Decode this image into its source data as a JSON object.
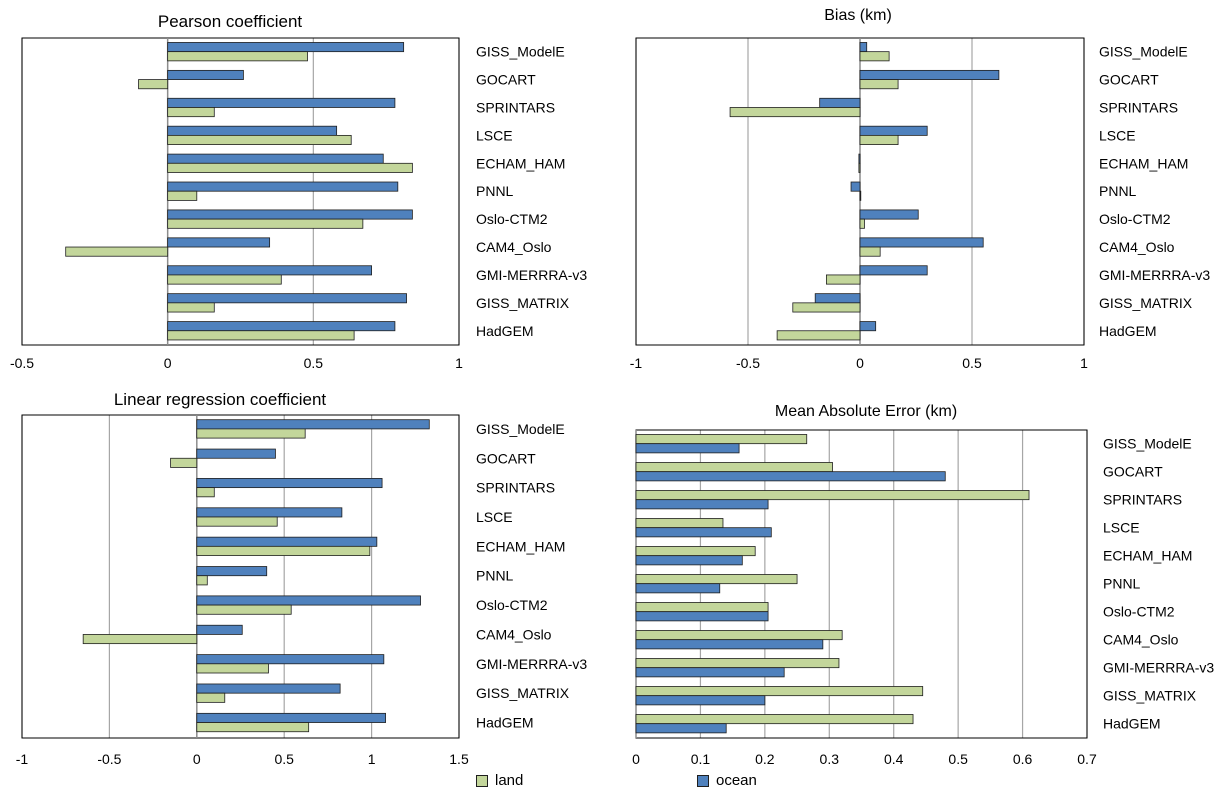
{
  "chart_data": [
    {
      "type": "bar",
      "orientation": "horizontal",
      "title": "Pearson coefficient",
      "categories": [
        "GISS_ModelE",
        "GOCART",
        "SPRINTARS",
        "LSCE",
        "ECHAM_HAM",
        "PNNL",
        "Oslo-CTM2",
        "CAM4_Oslo",
        "GMI-MERRRA-v3",
        "GISS_MATRIX",
        "HadGEM"
      ],
      "series": [
        {
          "name": "ocean",
          "values": [
            0.81,
            0.26,
            0.78,
            0.58,
            0.74,
            0.79,
            0.84,
            0.35,
            0.7,
            0.82,
            0.78
          ]
        },
        {
          "name": "land",
          "values": [
            0.48,
            -0.1,
            0.16,
            0.63,
            0.84,
            0.1,
            0.67,
            -0.35,
            0.39,
            0.16,
            0.64
          ]
        }
      ],
      "xlim": [
        -0.5,
        1
      ],
      "xticks": [
        "-0.5",
        "0",
        "0.5",
        "1"
      ],
      "tick_values": [
        -0.5,
        0,
        0.5,
        1
      ],
      "grid": true
    },
    {
      "type": "bar",
      "orientation": "horizontal",
      "title": "Bias (km)",
      "categories": [
        "GISS_ModelE",
        "GOCART",
        "SPRINTARS",
        "LSCE",
        "ECHAM_HAM",
        "PNNL",
        "Oslo-CTM2",
        "CAM4_Oslo",
        "GMI-MERRRA-v3",
        "GISS_MATRIX",
        "HadGEM"
      ],
      "series": [
        {
          "name": "ocean",
          "values": [
            0.03,
            0.62,
            -0.18,
            0.3,
            -0.005,
            -0.04,
            0.26,
            0.55,
            0.3,
            -0.2,
            0.07
          ]
        },
        {
          "name": "land",
          "values": [
            0.13,
            0.17,
            -0.58,
            0.17,
            -0.005,
            0.0,
            0.02,
            0.09,
            -0.15,
            -0.3,
            -0.37
          ]
        }
      ],
      "xlim": [
        -1,
        1
      ],
      "xticks": [
        "-1",
        "-0.5",
        "0",
        "0.5",
        "1"
      ],
      "tick_values": [
        -1,
        -0.5,
        0,
        0.5,
        1
      ],
      "grid": true
    },
    {
      "type": "bar",
      "orientation": "horizontal",
      "title": "Linear regression coefficient",
      "categories": [
        "GISS_ModelE",
        "GOCART",
        "SPRINTARS",
        "LSCE",
        "ECHAM_HAM",
        "PNNL",
        "Oslo-CTM2",
        "CAM4_Oslo",
        "GMI-MERRRA-v3",
        "GISS_MATRIX",
        "HadGEM"
      ],
      "series": [
        {
          "name": "ocean",
          "values": [
            1.33,
            0.45,
            1.06,
            0.83,
            1.03,
            0.4,
            1.28,
            0.26,
            1.07,
            0.82,
            1.08
          ]
        },
        {
          "name": "land",
          "values": [
            0.62,
            -0.15,
            0.1,
            0.46,
            0.99,
            0.06,
            0.54,
            -0.65,
            0.41,
            0.16,
            0.64
          ]
        }
      ],
      "xlim": [
        -1,
        1.5
      ],
      "xticks": [
        "-1",
        "-0.5",
        "0",
        "0.5",
        "1",
        "1.5"
      ],
      "tick_values": [
        -1,
        -0.5,
        0,
        0.5,
        1,
        1.5
      ],
      "grid": true
    },
    {
      "type": "bar",
      "orientation": "horizontal",
      "title": "Mean Absolute Error (km)",
      "categories": [
        "GISS_ModelE",
        "GOCART",
        "SPRINTARS",
        "LSCE",
        "ECHAM_HAM",
        "PNNL",
        "Oslo-CTM2",
        "CAM4_Oslo",
        "GMI-MERRRA-v3",
        "GISS_MATRIX",
        "HadGEM"
      ],
      "series": [
        {
          "name": "land",
          "values": [
            0.265,
            0.305,
            0.61,
            0.135,
            0.185,
            0.25,
            0.205,
            0.32,
            0.315,
            0.445,
            0.43
          ]
        },
        {
          "name": "ocean",
          "values": [
            0.16,
            0.48,
            0.205,
            0.21,
            0.165,
            0.13,
            0.205,
            0.29,
            0.23,
            0.2,
            0.14
          ]
        }
      ],
      "xlim": [
        0,
        0.7
      ],
      "xticks": [
        "0",
        "0.1",
        "0.2",
        "0.3",
        "0.4",
        "0.5",
        "0.6",
        "0.7"
      ],
      "tick_values": [
        0,
        0.1,
        0.2,
        0.3,
        0.4,
        0.5,
        0.6,
        0.7
      ],
      "grid": true
    }
  ],
  "legend": {
    "placement": "bottom",
    "items": [
      {
        "label": "land",
        "color": "#c3d69b"
      },
      {
        "label": "ocean",
        "color": "#4f81bd"
      }
    ]
  },
  "colors": {
    "land": "#c3d69b",
    "ocean": "#4f81bd",
    "bar_outline": "#1f1f1f",
    "grid": "#a6a6a6",
    "frame": "#000000"
  }
}
